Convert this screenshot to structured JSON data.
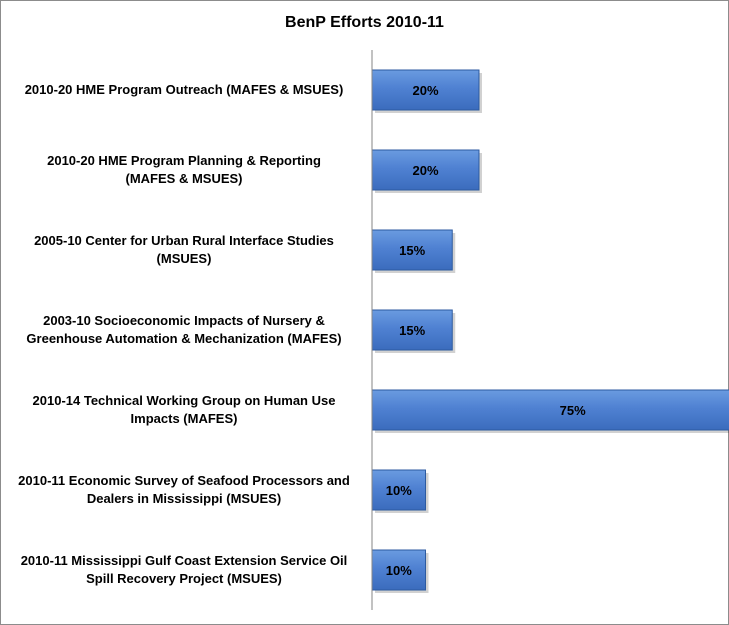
{
  "chart_data": {
    "type": "bar",
    "orientation": "horizontal",
    "title": "BenP Efforts 2010-11",
    "categories": [
      [
        "2010-20 HME Program Outreach (MAFES & MSUES)"
      ],
      [
        "2010-20 HME Program Planning & Reporting",
        "(MAFES & MSUES)"
      ],
      [
        "2005-10 Center for Urban Rural Interface Studies",
        "(MSUES)"
      ],
      [
        "2003-10 Socioeconomic Impacts of Nursery &",
        "Greenhouse Automation & Mechanization (MAFES)"
      ],
      [
        "2010-14 Technical Working Group on Human Use",
        "Impacts (MAFES)"
      ],
      [
        "2010-11 Economic Survey of Seafood Processors and",
        "Dealers in Mississippi (MSUES)"
      ],
      [
        "2010-11 Mississippi Gulf Coast Extension Service Oil",
        "Spill Recovery Project (MSUES)"
      ]
    ],
    "values": [
      20,
      20,
      15,
      15,
      75,
      10,
      10
    ],
    "data_labels": [
      "20%",
      "20%",
      "15%",
      "15%",
      "75%",
      "10%",
      "10%"
    ],
    "xlim": [
      0,
      80
    ],
    "xlabel": "",
    "ylabel": "",
    "grid": false,
    "legend": "none",
    "colors": {
      "bar_top": "#6a9be0",
      "bar_mid": "#4f81d2",
      "bar_bottom": "#3b6cbd",
      "bar_edge": "#2c5aa0",
      "axis": "#868686"
    }
  }
}
